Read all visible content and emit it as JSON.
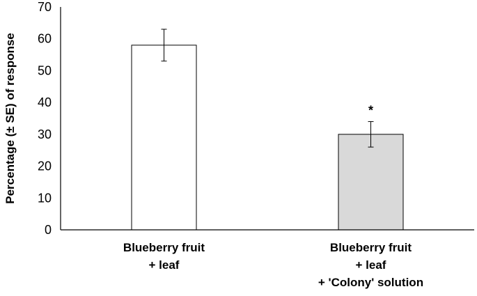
{
  "chart_data": {
    "type": "bar",
    "title": "",
    "xlabel": "",
    "ylabel": "Percentage (± SE) of response",
    "ylim": [
      0,
      70
    ],
    "yticks": [
      0,
      10,
      20,
      30,
      40,
      50,
      60,
      70
    ],
    "grid": false,
    "legend": "none",
    "categories": [
      [
        "Blueberry fruit",
        "+ leaf"
      ],
      [
        "Blueberry fruit",
        "+ leaf",
        "+ 'Colony' solution"
      ]
    ],
    "values": [
      58,
      30
    ],
    "errors": [
      5,
      4
    ],
    "annotations": [
      "",
      "*"
    ],
    "bar_colors": [
      "#ffffff",
      "#d9d9d9"
    ]
  }
}
